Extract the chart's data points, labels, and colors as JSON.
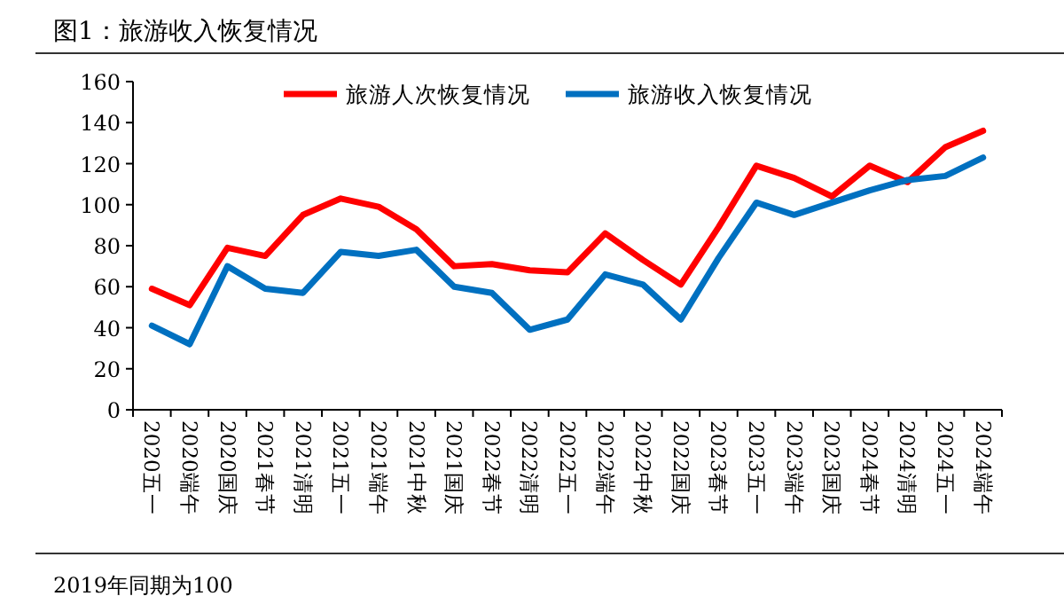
{
  "chart_data": {
    "type": "line",
    "title": "图1：旅游收入恢复情况",
    "categories": [
      "2020五一",
      "2020端午",
      "2020国庆",
      "2021春节",
      "2021清明",
      "2021五一",
      "2021端午",
      "2021中秋",
      "2021国庆",
      "2022春节",
      "2022清明",
      "2022五一",
      "2022端午",
      "2022中秋",
      "2022国庆",
      "2023春节",
      "2023五一",
      "2023端午",
      "2023国庆",
      "2024春节",
      "2024清明",
      "2024五一",
      "2024端午"
    ],
    "series": [
      {
        "name": "旅游人次恢复情况",
        "color": "#ff0000",
        "values": [
          59,
          51,
          79,
          75,
          95,
          103,
          99,
          88,
          70,
          71,
          68,
          67,
          86,
          73,
          61,
          89,
          119,
          113,
          104,
          119,
          111,
          128,
          136
        ]
      },
      {
        "name": "旅游收入恢复情况",
        "color": "#0070c0",
        "values": [
          41,
          32,
          70,
          59,
          57,
          77,
          75,
          78,
          60,
          57,
          39,
          44,
          66,
          61,
          44,
          74,
          101,
          95,
          101,
          107,
          112,
          114,
          123
        ]
      }
    ],
    "ylim": [
      0,
      160
    ],
    "yticks": [
      0,
      20,
      40,
      60,
      80,
      100,
      120,
      140,
      160
    ],
    "legend": "top",
    "grid": false,
    "marker": "none",
    "line_style": "solid",
    "annotations": [
      "2019年同期为100"
    ]
  }
}
